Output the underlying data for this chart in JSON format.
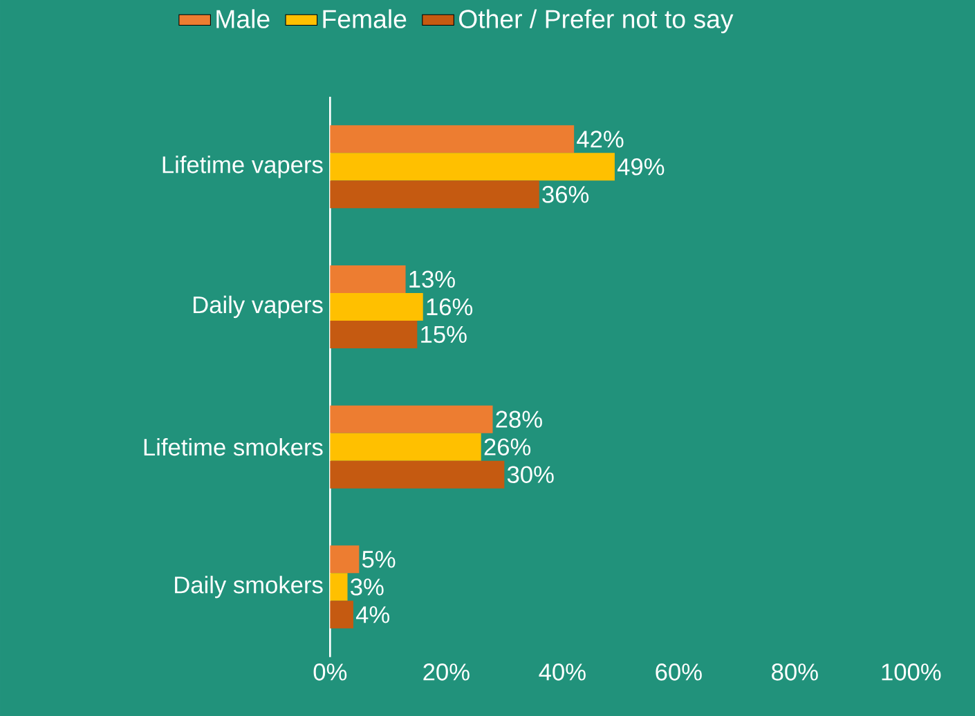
{
  "chart_data": {
    "type": "bar",
    "orientation": "horizontal",
    "categories": [
      "Lifetime vapers",
      "Daily vapers",
      "Lifetime smokers",
      "Daily smokers"
    ],
    "series": [
      {
        "name": "Male",
        "color": "#ed7d31",
        "values": [
          42,
          13,
          28,
          5
        ],
        "value_labels": [
          "42%",
          "13%",
          "28%",
          "5%"
        ]
      },
      {
        "name": "Female",
        "color": "#ffc000",
        "values": [
          49,
          16,
          26,
          3
        ],
        "value_labels": [
          "49%",
          "16%",
          "26%",
          "3%"
        ]
      },
      {
        "name": "Other / Prefer not to say",
        "color": "#c55a11",
        "values": [
          36,
          15,
          30,
          4
        ],
        "value_labels": [
          "36%",
          "15%",
          "30%",
          "4%"
        ]
      }
    ],
    "xlim": [
      0,
      100
    ],
    "xticks": [
      {
        "value": 0,
        "label": "0%"
      },
      {
        "value": 20,
        "label": "20%"
      },
      {
        "value": 40,
        "label": "40%"
      },
      {
        "value": 60,
        "label": "60%"
      },
      {
        "value": 80,
        "label": "80%"
      },
      {
        "value": 100,
        "label": "100%"
      }
    ],
    "legend": "top"
  }
}
